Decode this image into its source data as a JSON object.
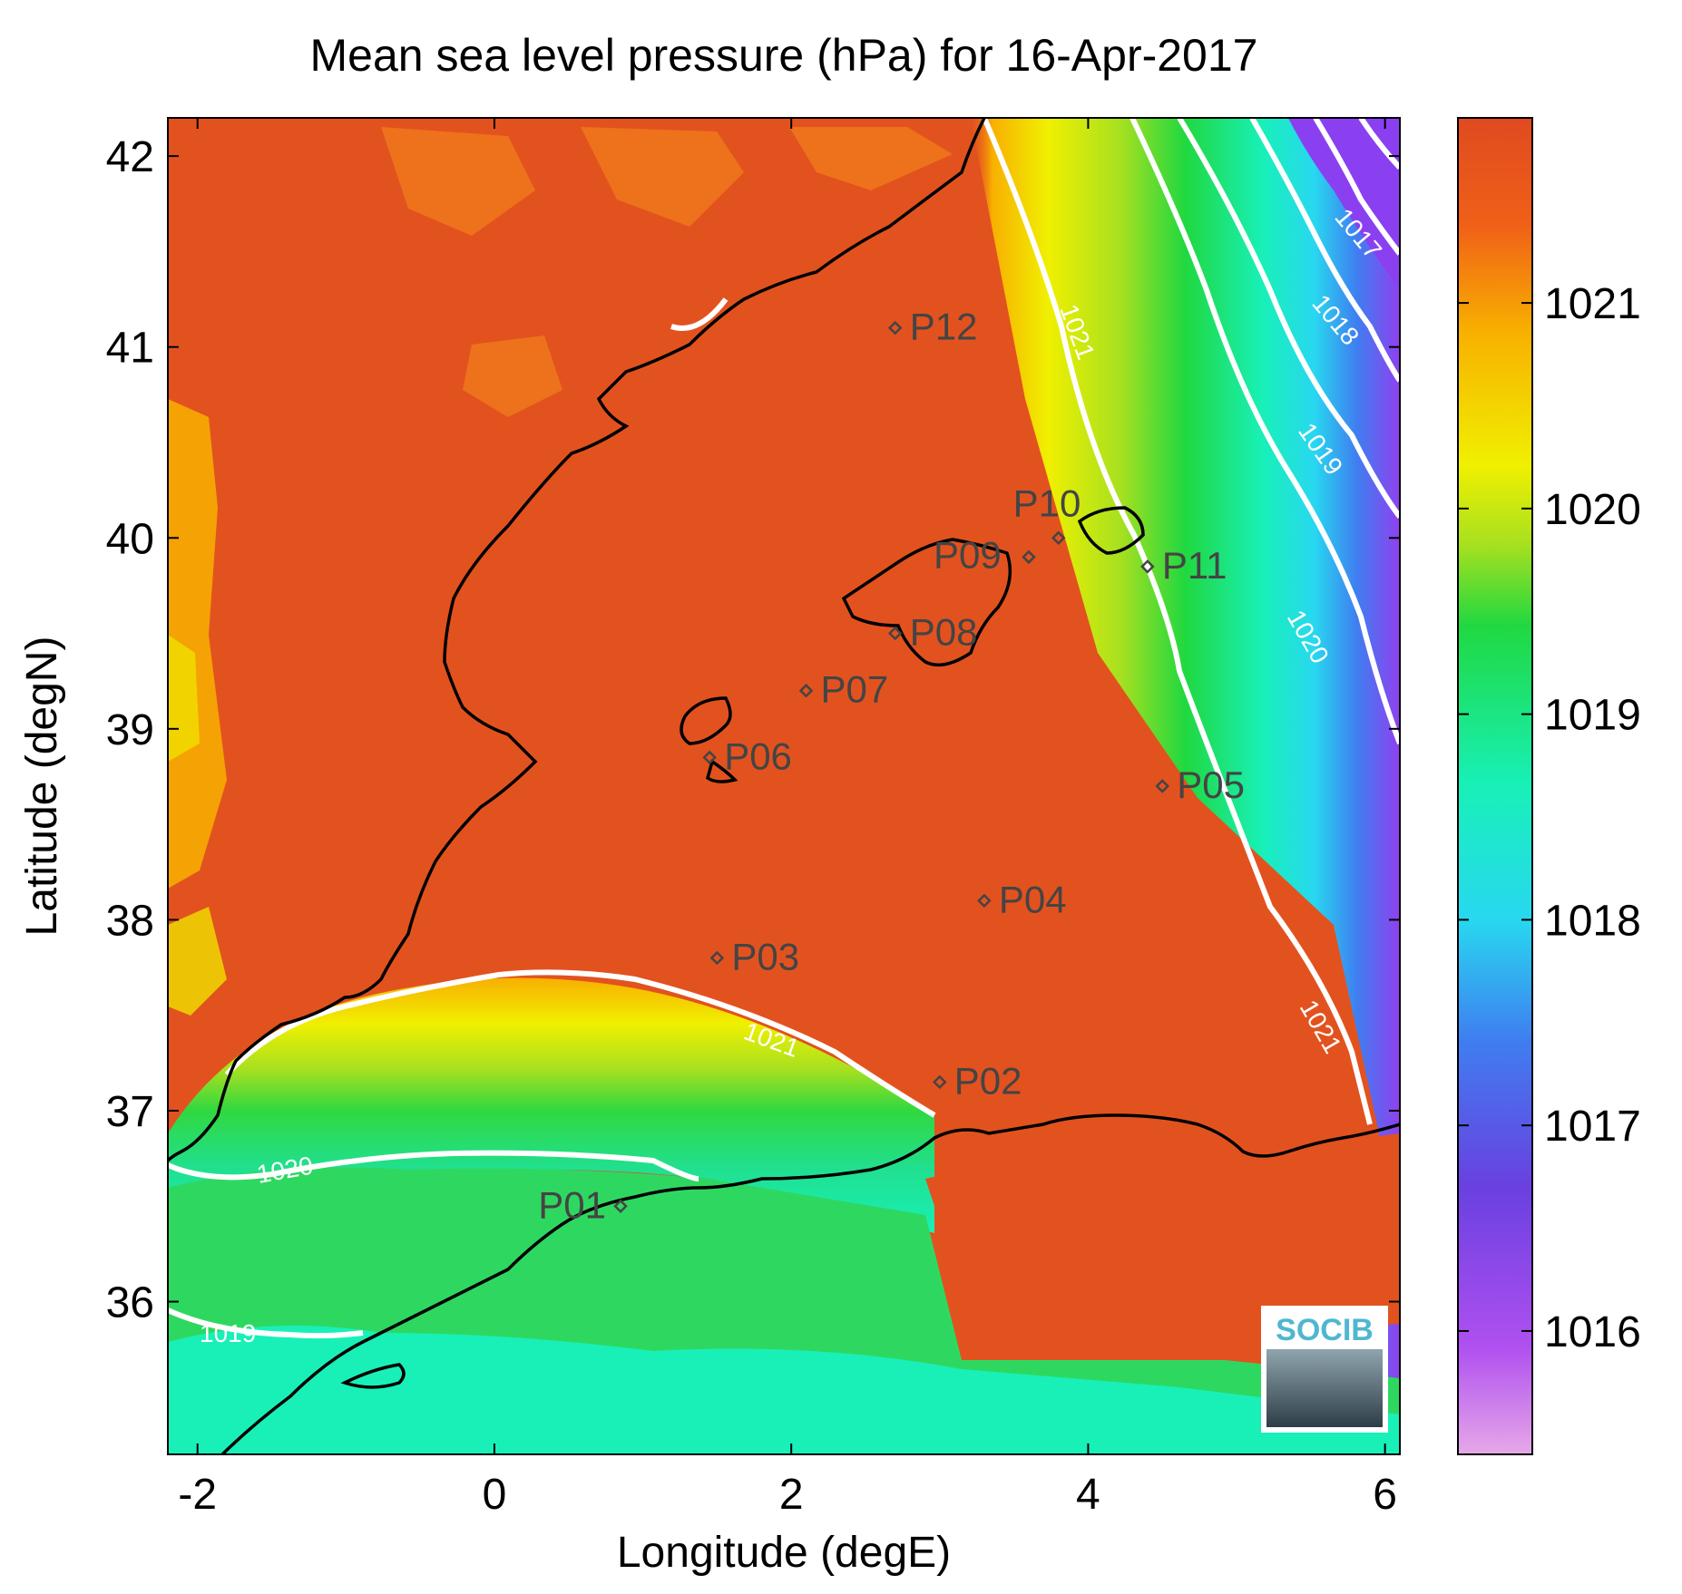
{
  "title": "Mean sea level pressure (hPa) for 16-Apr-2017",
  "xlabel": "Longitude (degE)",
  "ylabel": "Latitude (degN)",
  "logo_text": "SOCIB",
  "chart_data": {
    "type": "heatmap",
    "title": "Mean sea level pressure (hPa) for 16-Apr-2017",
    "xlabel": "Longitude (degE)",
    "ylabel": "Latitude (degN)",
    "xlim": [
      -2.2,
      6.1
    ],
    "ylim": [
      35.2,
      42.2
    ],
    "x_ticks": [
      -2,
      0,
      2,
      4,
      6
    ],
    "y_ticks": [
      36,
      37,
      38,
      39,
      40,
      41,
      42
    ],
    "colorbar": {
      "range": [
        1015.4,
        1021.9
      ],
      "ticks": [
        1016,
        1017,
        1018,
        1019,
        1020,
        1021
      ],
      "colormap": [
        "#e6a8e8",
        "#b050f0",
        "#6a40e0",
        "#3f7ef0",
        "#28d8f0",
        "#18f0b8",
        "#20d840",
        "#a6e020",
        "#f0f000",
        "#f8b000",
        "#f06018",
        "#e04a20"
      ]
    },
    "contours": [
      {
        "level": 1017,
        "label": "1017"
      },
      {
        "level": 1018,
        "label": "1018"
      },
      {
        "level": 1019,
        "label": "1019"
      },
      {
        "level": 1020,
        "label": "1020"
      },
      {
        "level": 1021,
        "label": "1021"
      }
    ],
    "stations": [
      {
        "name": "P01",
        "lon": 0.85,
        "lat": 36.5
      },
      {
        "name": "P02",
        "lon": 3.0,
        "lat": 37.15
      },
      {
        "name": "P03",
        "lon": 1.5,
        "lat": 37.8
      },
      {
        "name": "P04",
        "lon": 3.3,
        "lat": 38.1
      },
      {
        "name": "P05",
        "lon": 4.5,
        "lat": 38.7
      },
      {
        "name": "P06",
        "lon": 1.45,
        "lat": 38.85
      },
      {
        "name": "P07",
        "lon": 2.1,
        "lat": 39.2
      },
      {
        "name": "P08",
        "lon": 2.7,
        "lat": 39.5
      },
      {
        "name": "P09",
        "lon": 3.6,
        "lat": 39.9
      },
      {
        "name": "P10",
        "lon": 3.8,
        "lat": 40.0
      },
      {
        "name": "P11",
        "lon": 4.4,
        "lat": 39.85
      },
      {
        "name": "P12",
        "lon": 2.7,
        "lat": 41.1
      }
    ]
  }
}
